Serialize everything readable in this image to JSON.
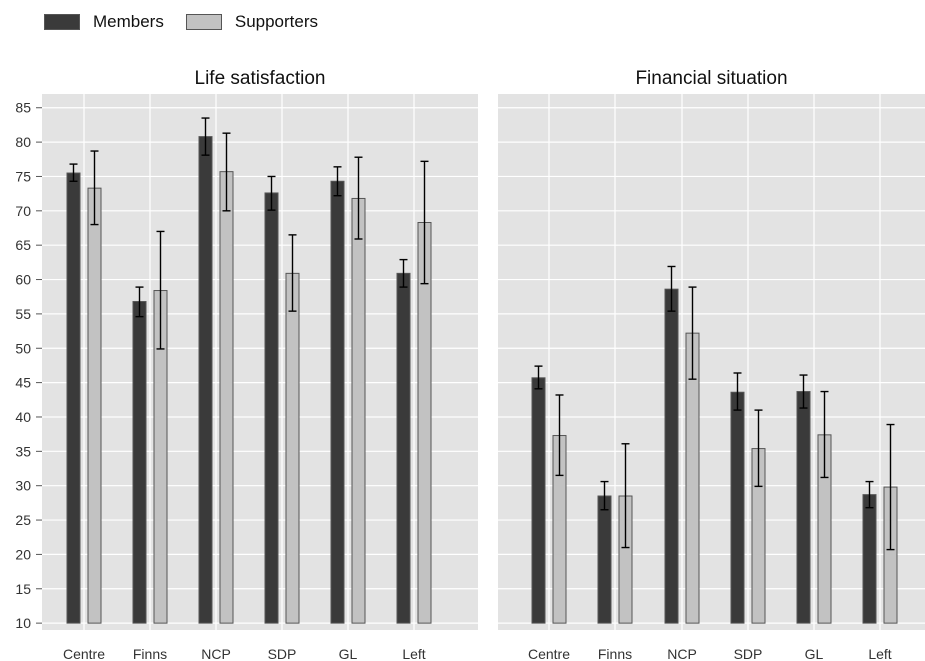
{
  "chart_data": [
    {
      "type": "bar",
      "title": "Life satisfaction",
      "categories": [
        "Centre",
        "Finns",
        "NCP",
        "SDP",
        "GL",
        "Left"
      ],
      "series": [
        {
          "name": "Members",
          "values": [
            75.5,
            56.8,
            80.8,
            72.6,
            74.3,
            60.9
          ],
          "error_low": [
            74.3,
            54.6,
            78.1,
            70.1,
            72.2,
            58.9
          ],
          "error_high": [
            76.8,
            58.9,
            83.5,
            75.0,
            76.4,
            62.9
          ]
        },
        {
          "name": "Supporters",
          "values": [
            73.3,
            58.4,
            75.7,
            60.9,
            71.8,
            68.3
          ],
          "error_low": [
            68.0,
            49.9,
            70.0,
            55.4,
            65.9,
            59.4
          ],
          "error_high": [
            78.7,
            67.0,
            81.3,
            66.5,
            77.8,
            77.2
          ]
        }
      ],
      "ylim": [
        9,
        87
      ],
      "yticks": [
        10,
        15,
        20,
        25,
        30,
        35,
        40,
        45,
        50,
        55,
        60,
        65,
        70,
        75,
        80,
        85
      ],
      "grid": true
    },
    {
      "type": "bar",
      "title": "Financial situation",
      "categories": [
        "Centre",
        "Finns",
        "NCP",
        "SDP",
        "GL",
        "Left"
      ],
      "series": [
        {
          "name": "Members",
          "values": [
            45.7,
            28.5,
            58.6,
            43.6,
            43.7,
            28.7
          ],
          "error_low": [
            44.1,
            26.5,
            55.4,
            41.0,
            41.3,
            26.8
          ],
          "error_high": [
            47.4,
            30.6,
            61.9,
            46.4,
            46.1,
            30.6
          ]
        },
        {
          "name": "Supporters",
          "values": [
            37.3,
            28.5,
            52.2,
            35.4,
            37.4,
            29.8
          ],
          "error_low": [
            31.5,
            21.0,
            45.5,
            29.9,
            31.2,
            20.7
          ],
          "error_high": [
            43.2,
            36.1,
            58.9,
            41.0,
            43.7,
            38.9
          ]
        }
      ],
      "ylim": [
        9,
        87
      ],
      "grid": true
    }
  ],
  "legend": {
    "placement": "top-left",
    "items": [
      {
        "label": "Members",
        "color": "#3a3a3a"
      },
      {
        "label": "Supporters",
        "color": "#c2c2c2"
      }
    ]
  },
  "colors": {
    "panel_bg": "#e3e3e3",
    "grid": "#ffffff",
    "members": "#3a3a3a",
    "supporters": "#c2c2c2"
  }
}
